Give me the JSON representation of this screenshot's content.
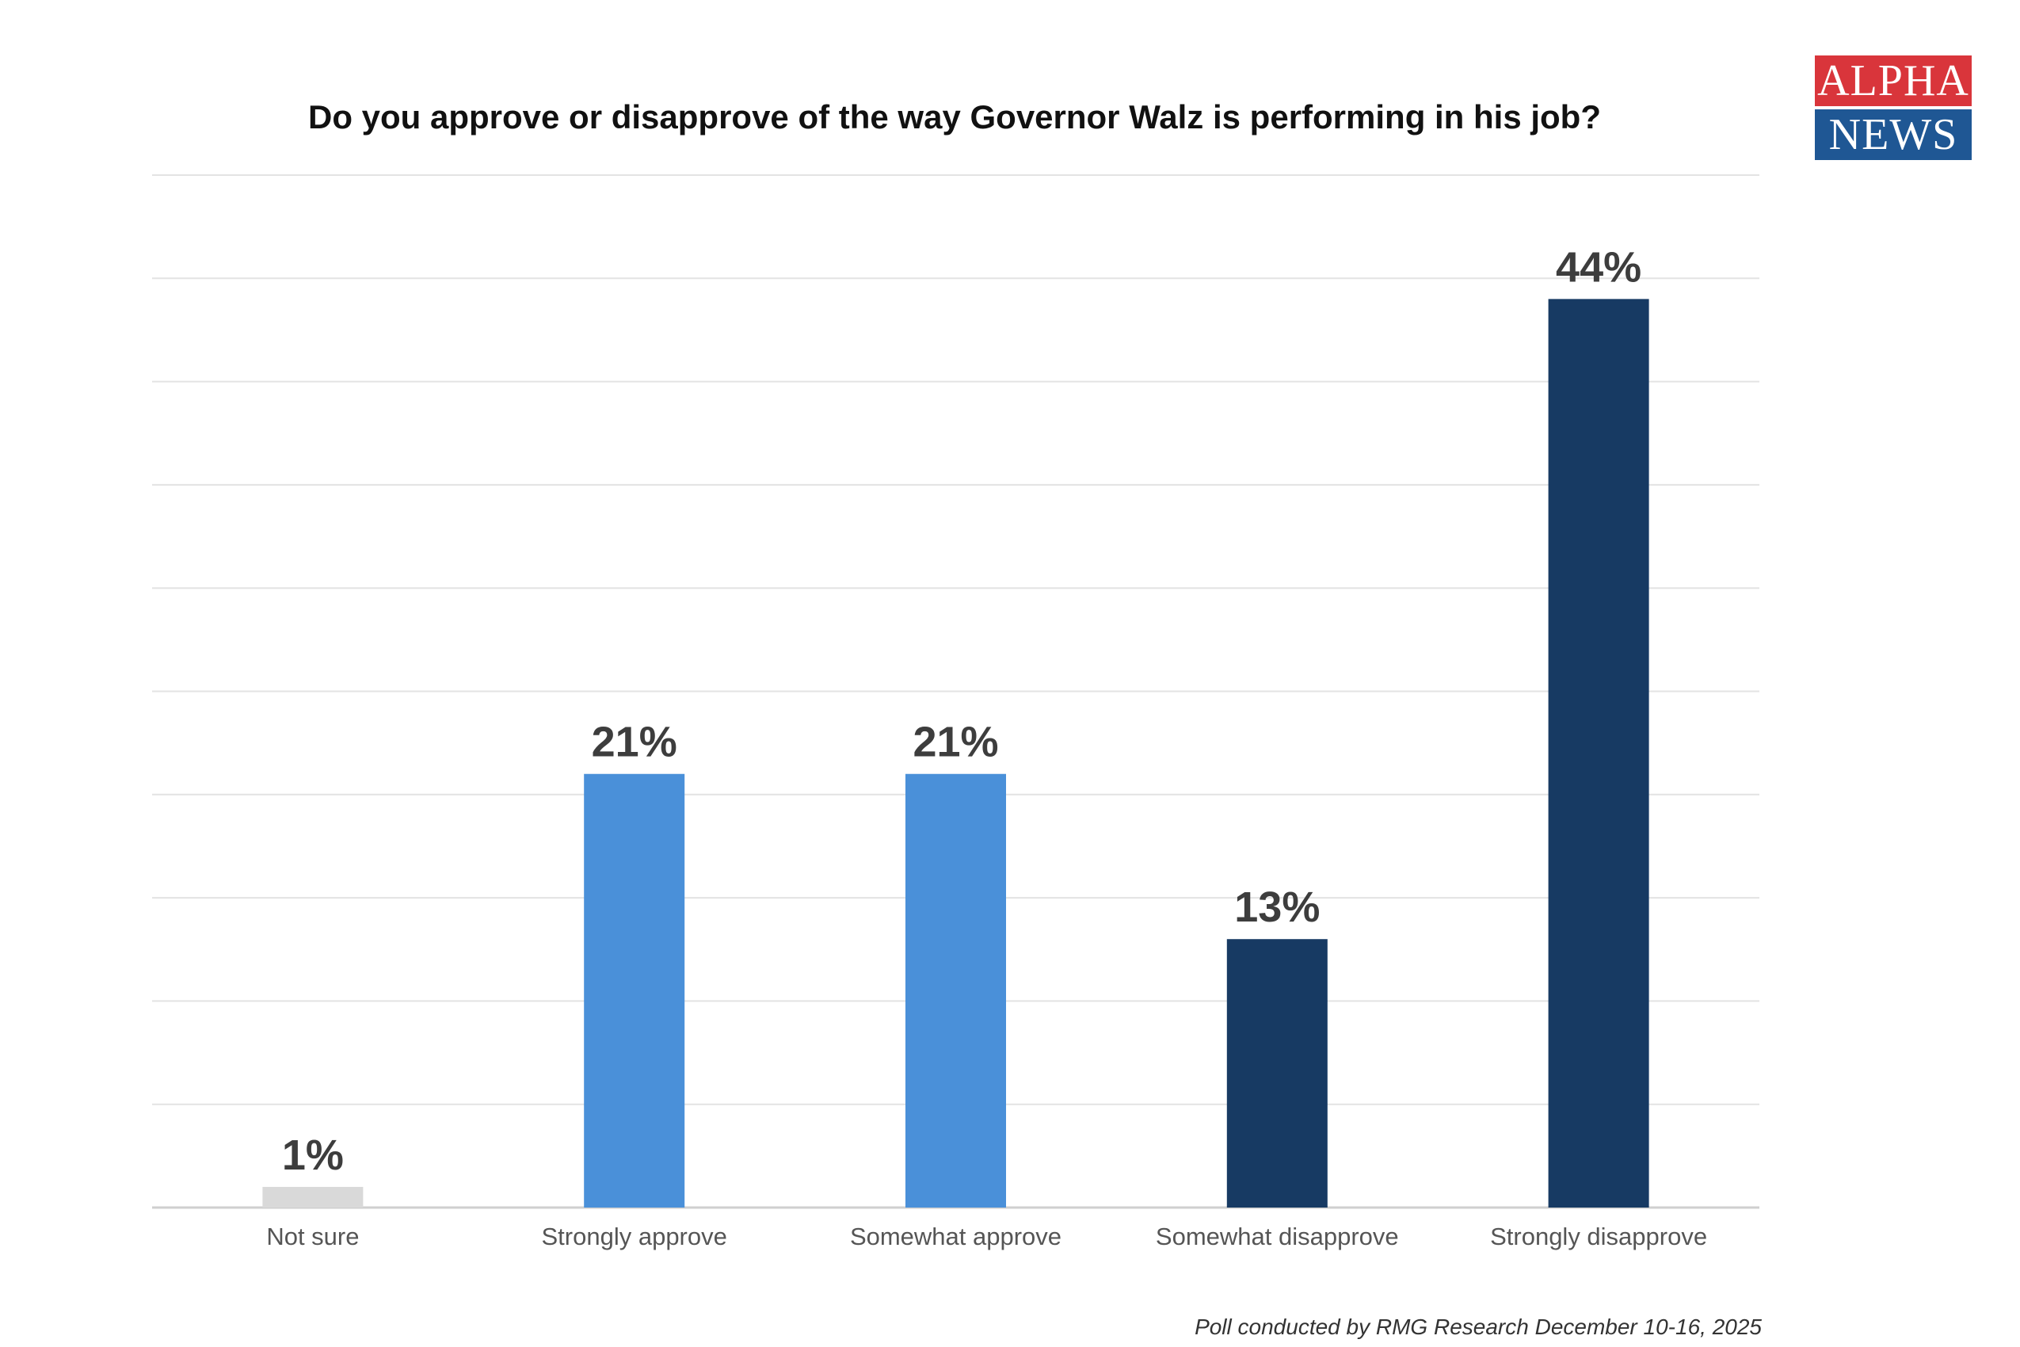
{
  "logo": {
    "line1": "ALPHA",
    "line2": "NEWS",
    "colors": {
      "top": "#d9353b",
      "bottom": "#1f5794"
    }
  },
  "chart_data": {
    "type": "bar",
    "title": "Do you approve or disapprove of the way Governor Walz is performing in his job?",
    "categories": [
      "Not sure",
      "Strongly approve",
      "Somewhat approve",
      "Somewhat disapprove",
      "Strongly disapprove"
    ],
    "values": [
      1,
      21,
      21,
      13,
      44
    ],
    "value_labels": [
      "1%",
      "21%",
      "21%",
      "13%",
      "44%"
    ],
    "colors": [
      "#d9d9d9",
      "#4a90d9",
      "#4a90d9",
      "#173a63",
      "#173a63"
    ],
    "ylim": [
      0,
      50
    ],
    "grid": true,
    "grid_step": 5,
    "xlabel": "",
    "ylabel": "",
    "footnote": "Poll conducted by RMG Research December 10-16, 2025"
  }
}
